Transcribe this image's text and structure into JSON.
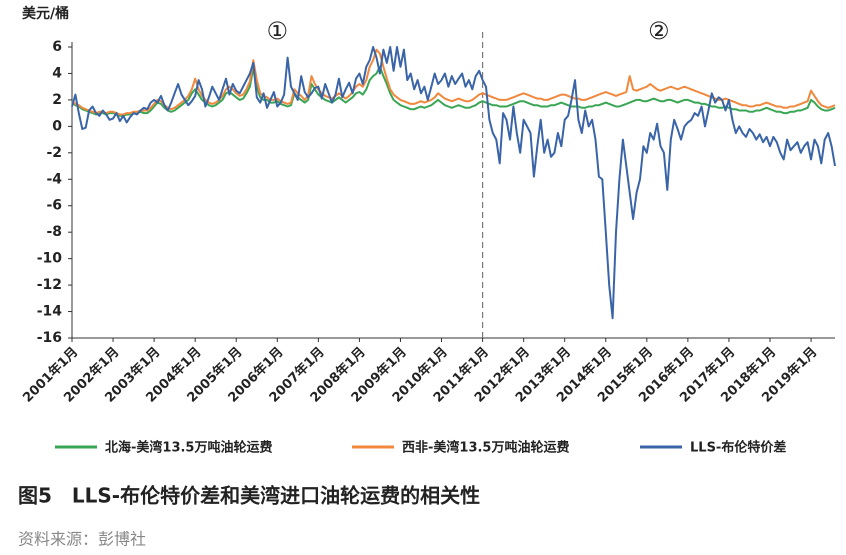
{
  "chart_data": {
    "type": "line",
    "title": "图5　LLS-布伦特价差和美湾进口油轮运费的相关性",
    "source": "资料来源：彭博社",
    "ylabel": "美元/桶",
    "annotations": [
      "①",
      "②"
    ],
    "divider": "2011年1月",
    "ylim": [
      -16,
      6
    ],
    "yticks": [
      -16,
      -14,
      -12,
      -10,
      -8,
      -6,
      -4,
      -2,
      0,
      2,
      4,
      6
    ],
    "categories": [
      "2001年1月",
      null,
      null,
      null,
      null,
      null,
      null,
      null,
      null,
      null,
      null,
      null,
      "2002年1月",
      null,
      null,
      null,
      null,
      null,
      null,
      null,
      null,
      null,
      null,
      null,
      "2003年1月",
      null,
      null,
      null,
      null,
      null,
      null,
      null,
      null,
      null,
      null,
      null,
      "2004年1月",
      null,
      null,
      null,
      null,
      null,
      null,
      null,
      null,
      null,
      null,
      null,
      "2005年1月",
      null,
      null,
      null,
      null,
      null,
      null,
      null,
      null,
      null,
      null,
      null,
      "2006年1月",
      null,
      null,
      null,
      null,
      null,
      null,
      null,
      null,
      null,
      null,
      null,
      "2007年1月",
      null,
      null,
      null,
      null,
      null,
      null,
      null,
      null,
      null,
      null,
      null,
      "2008年1月",
      null,
      null,
      null,
      null,
      null,
      null,
      null,
      null,
      null,
      null,
      null,
      "2009年1月",
      null,
      null,
      null,
      null,
      null,
      null,
      null,
      null,
      null,
      null,
      null,
      "2010年1月",
      null,
      null,
      null,
      null,
      null,
      null,
      null,
      null,
      null,
      null,
      null,
      "2011年1月",
      null,
      null,
      null,
      null,
      null,
      null,
      null,
      null,
      null,
      null,
      null,
      "2012年1月",
      null,
      null,
      null,
      null,
      null,
      null,
      null,
      null,
      null,
      null,
      null,
      "2013年1月",
      null,
      null,
      null,
      null,
      null,
      null,
      null,
      null,
      null,
      null,
      null,
      "2014年1月",
      null,
      null,
      null,
      null,
      null,
      null,
      null,
      null,
      null,
      null,
      null,
      "2015年1月",
      null,
      null,
      null,
      null,
      null,
      null,
      null,
      null,
      null,
      null,
      null,
      "2016年1月",
      null,
      null,
      null,
      null,
      null,
      null,
      null,
      null,
      null,
      null,
      null,
      "2017年1月",
      null,
      null,
      null,
      null,
      null,
      null,
      null,
      null,
      null,
      null,
      null,
      "2018年1月",
      null,
      null,
      null,
      null,
      null,
      null,
      null,
      null,
      null,
      null,
      null,
      "2019年1月",
      null,
      null,
      null,
      null,
      null,
      null,
      null
    ],
    "series": [
      {
        "name": "北海-美湾13.5万吨油轮运费",
        "color": "#3aa655",
        "values": [
          1.8,
          1.6,
          1.5,
          1.3,
          1.2,
          1.1,
          1.0,
          0.9,
          1.0,
          1.0,
          0.9,
          1.0,
          1.0,
          0.9,
          0.8,
          0.8,
          0.9,
          0.9,
          1.0,
          1.0,
          1.1,
          1.0,
          1.0,
          1.2,
          1.5,
          1.8,
          1.7,
          1.4,
          1.2,
          1.1,
          1.2,
          1.4,
          1.6,
          1.8,
          2.0,
          2.5,
          2.8,
          2.4,
          2.0,
          1.8,
          1.6,
          1.5,
          1.6,
          1.8,
          2.0,
          2.5,
          2.6,
          2.4,
          2.2,
          2.0,
          2.1,
          2.5,
          3.0,
          4.4,
          3.0,
          2.2,
          2.0,
          2.0,
          1.8,
          1.8,
          1.9,
          1.7,
          1.6,
          1.5,
          1.6,
          2.5,
          2.2,
          2.0,
          1.8,
          2.0,
          3.2,
          2.8,
          2.4,
          2.2,
          2.0,
          1.9,
          1.8,
          2.0,
          2.2,
          2.0,
          1.8,
          2.0,
          2.2,
          2.5,
          2.6,
          2.4,
          2.8,
          3.5,
          3.8,
          4.0,
          4.5,
          3.8,
          3.2,
          2.5,
          2.0,
          1.8,
          1.6,
          1.5,
          1.4,
          1.3,
          1.3,
          1.4,
          1.5,
          1.4,
          1.5,
          1.6,
          1.8,
          2.0,
          1.8,
          1.6,
          1.5,
          1.4,
          1.5,
          1.6,
          1.5,
          1.4,
          1.4,
          1.5,
          1.6,
          1.8,
          1.9,
          1.8,
          1.7,
          1.6,
          1.6,
          1.5,
          1.5,
          1.5,
          1.6,
          1.7,
          1.8,
          1.9,
          1.9,
          1.8,
          1.7,
          1.6,
          1.6,
          1.5,
          1.5,
          1.5,
          1.6,
          1.6,
          1.7,
          1.8,
          1.7,
          1.6,
          1.5,
          1.5,
          1.5,
          1.4,
          1.4,
          1.5,
          1.5,
          1.6,
          1.6,
          1.7,
          1.8,
          1.7,
          1.6,
          1.5,
          1.5,
          1.6,
          1.7,
          1.8,
          1.9,
          2.0,
          2.0,
          1.9,
          1.9,
          2.0,
          2.1,
          2.0,
          1.9,
          1.9,
          2.0,
          2.0,
          1.9,
          1.8,
          1.9,
          2.0,
          2.0,
          1.9,
          1.8,
          1.8,
          1.7,
          1.7,
          1.6,
          1.5,
          1.5,
          1.4,
          1.4,
          1.5,
          1.4,
          1.3,
          1.3,
          1.2,
          1.2,
          1.2,
          1.1,
          1.1,
          1.2,
          1.2,
          1.3,
          1.4,
          1.3,
          1.2,
          1.1,
          1.1,
          1.0,
          1.0,
          1.1,
          1.1,
          1.2,
          1.2,
          1.3,
          1.4,
          2.0,
          1.8,
          1.5,
          1.3,
          1.2,
          1.2,
          1.3,
          1.4
        ]
      },
      {
        "name": "西非-美湾13.5万吨油轮运费",
        "color": "#f0883e",
        "values": [
          1.9,
          1.7,
          1.6,
          1.4,
          1.3,
          1.2,
          1.1,
          1.0,
          1.1,
          1.1,
          1.0,
          1.1,
          1.1,
          1.0,
          0.9,
          0.9,
          1.0,
          1.0,
          1.1,
          1.1,
          1.2,
          1.2,
          1.2,
          1.4,
          1.7,
          2.0,
          1.9,
          1.6,
          1.4,
          1.3,
          1.4,
          1.6,
          1.8,
          2.0,
          2.3,
          2.8,
          3.6,
          2.8,
          2.3,
          2.0,
          1.8,
          1.7,
          1.8,
          2.0,
          2.3,
          2.8,
          3.0,
          2.8,
          2.5,
          2.3,
          2.4,
          2.8,
          3.4,
          5.0,
          3.5,
          2.5,
          2.3,
          2.2,
          2.0,
          2.0,
          2.1,
          1.9,
          1.8,
          1.7,
          1.8,
          2.8,
          2.5,
          2.3,
          2.0,
          2.3,
          3.8,
          3.2,
          2.8,
          2.5,
          2.3,
          2.2,
          2.1,
          2.3,
          2.5,
          2.3,
          2.1,
          2.3,
          2.6,
          3.0,
          3.2,
          3.0,
          3.5,
          4.5,
          5.0,
          5.8,
          5.5,
          4.5,
          3.6,
          2.8,
          2.4,
          2.2,
          2.0,
          1.9,
          1.8,
          1.7,
          1.7,
          1.8,
          1.9,
          1.8,
          1.9,
          2.0,
          2.2,
          2.5,
          2.3,
          2.1,
          2.0,
          1.9,
          2.0,
          2.1,
          2.0,
          1.9,
          1.9,
          2.0,
          2.2,
          2.4,
          2.5,
          2.4,
          2.3,
          2.2,
          2.1,
          2.0,
          2.0,
          2.0,
          2.1,
          2.2,
          2.3,
          2.4,
          2.5,
          2.4,
          2.3,
          2.2,
          2.1,
          2.1,
          2.0,
          2.0,
          2.1,
          2.2,
          2.3,
          2.4,
          2.4,
          2.3,
          2.2,
          2.1,
          2.1,
          2.0,
          2.0,
          2.1,
          2.2,
          2.3,
          2.4,
          2.5,
          2.6,
          2.5,
          2.4,
          2.3,
          2.4,
          2.5,
          2.6,
          3.8,
          2.8,
          2.7,
          2.8,
          2.9,
          3.0,
          3.2,
          3.0,
          2.8,
          2.7,
          2.8,
          2.9,
          3.0,
          2.9,
          2.8,
          2.9,
          3.0,
          2.9,
          2.8,
          2.7,
          2.6,
          2.5,
          2.4,
          2.3,
          2.2,
          2.1,
          2.0,
          2.0,
          2.1,
          2.0,
          1.9,
          1.8,
          1.7,
          1.6,
          1.6,
          1.5,
          1.5,
          1.6,
          1.6,
          1.7,
          1.8,
          1.7,
          1.6,
          1.5,
          1.5,
          1.4,
          1.4,
          1.5,
          1.5,
          1.6,
          1.7,
          1.8,
          1.9,
          2.7,
          2.3,
          1.9,
          1.6,
          1.5,
          1.4,
          1.5,
          1.6
        ]
      },
      {
        "name": "LLS-布伦特价差",
        "color": "#3a64a8",
        "values": [
          1.5,
          2.4,
          1.0,
          -0.2,
          -0.1,
          1.2,
          1.5,
          1.0,
          0.8,
          1.2,
          0.9,
          0.5,
          0.6,
          1.0,
          0.4,
          0.8,
          0.3,
          0.7,
          1.0,
          0.9,
          1.2,
          1.4,
          1.3,
          1.8,
          2.0,
          1.8,
          2.3,
          1.6,
          1.2,
          1.8,
          2.5,
          3.2,
          2.4,
          2.0,
          1.6,
          1.9,
          2.3,
          3.5,
          2.8,
          1.5,
          2.2,
          3.0,
          2.5,
          2.0,
          2.8,
          3.6,
          2.4,
          3.2,
          2.7,
          2.5,
          3.0,
          3.5,
          4.0,
          4.8,
          2.2,
          1.8,
          2.5,
          1.4,
          2.0,
          2.6,
          1.5,
          1.8,
          2.4,
          5.2,
          3.0,
          2.5,
          2.0,
          3.8,
          2.6,
          2.2,
          2.5,
          2.9,
          3.0,
          2.1,
          3.2,
          2.5,
          1.8,
          2.4,
          3.6,
          2.2,
          2.8,
          3.3,
          2.5,
          3.6,
          4.0,
          3.2,
          4.5,
          5.0,
          6.0,
          5.2,
          4.0,
          5.8,
          4.8,
          6.0,
          4.2,
          6.0,
          4.5,
          5.8,
          3.5,
          4.0,
          2.8,
          3.5,
          2.5,
          3.0,
          2.0,
          3.0,
          4.0,
          3.2,
          3.5,
          4.0,
          3.0,
          3.8,
          3.2,
          3.6,
          4.0,
          3.0,
          3.5,
          2.8,
          3.8,
          4.2,
          3.5,
          3.0,
          0.5,
          -0.5,
          -1.0,
          -2.8,
          1.0,
          0.5,
          -1.0,
          1.5,
          -0.5,
          -2.0,
          0.5,
          0.0,
          -0.5,
          -3.8,
          -1.5,
          0.5,
          -2.0,
          -1.0,
          -2.3,
          -2.0,
          -0.5,
          -1.5,
          0.5,
          0.8,
          2.0,
          3.5,
          0.5,
          -0.5,
          1.2,
          0.0,
          0.5,
          -1.0,
          -3.8,
          -4.0,
          -8.0,
          -12.0,
          -14.5,
          -8.0,
          -4.0,
          -1.0,
          -3.0,
          -5.0,
          -7.0,
          -5.0,
          -4.0,
          -1.5,
          -2.0,
          -0.5,
          -1.0,
          0.2,
          -1.5,
          -2.0,
          -4.8,
          -1.0,
          0.5,
          -0.2,
          -1.0,
          0.0,
          0.3,
          0.5,
          1.0,
          0.8,
          1.5,
          0.0,
          1.2,
          2.5,
          1.8,
          2.2,
          2.0,
          1.2,
          2.0,
          0.5,
          -0.5,
          0.0,
          -0.5,
          -0.8,
          -0.2,
          -0.5,
          -1.0,
          -0.6,
          -1.2,
          -0.8,
          -1.5,
          -0.8,
          -1.2,
          -2.0,
          -2.5,
          -1.0,
          -1.8,
          -1.5,
          -1.2,
          -2.0,
          -1.5,
          -1.2,
          -2.5,
          -1.0,
          -1.5,
          -2.8,
          -1.0,
          -0.5,
          -1.5,
          -3.0
        ]
      }
    ]
  }
}
